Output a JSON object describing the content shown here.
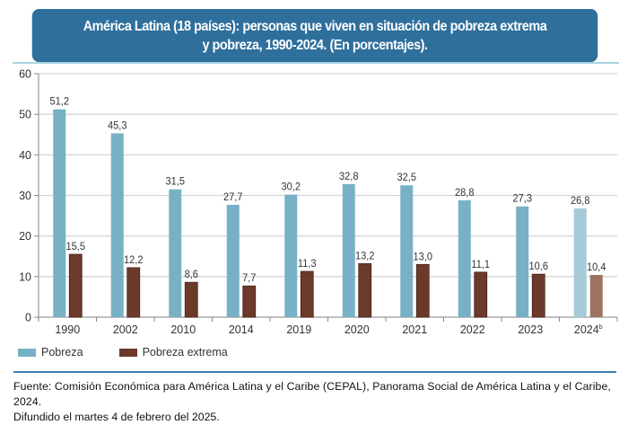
{
  "title": {
    "line1": "América Latina (18 países): personas que viven en situación de pobreza extrema",
    "line2": "y pobreza, 1990-2024. (En porcentajes)."
  },
  "chart_data": {
    "type": "bar",
    "title": "América Latina (18 países): personas que viven en situación de pobreza extrema y pobreza, 1990-2024. (En porcentajes).",
    "xlabel": "",
    "ylabel": "",
    "ylim": [
      0,
      60
    ],
    "yticks": [
      0,
      10,
      20,
      30,
      40,
      50,
      60
    ],
    "grid": true,
    "legend_position": "bottom-left",
    "categories": [
      "1990",
      "2002",
      "2010",
      "2014",
      "2019",
      "2020",
      "2021",
      "2022",
      "2023",
      "2024"
    ],
    "category_superscripts": {
      "2024": "b"
    },
    "projected_categories": [
      "2024"
    ],
    "series": [
      {
        "name": "Pobreza",
        "color": "#78b1c5",
        "projected_color": "#a6cbd6",
        "values": [
          51.2,
          45.3,
          31.5,
          27.7,
          30.2,
          32.8,
          32.5,
          28.8,
          27.3,
          26.8
        ],
        "labels": [
          "51,2",
          "45,3",
          "31,5",
          "27,7",
          "30,2",
          "32,8",
          "32,5",
          "28,8",
          "27,3",
          "26,8"
        ]
      },
      {
        "name": "Pobreza extrema",
        "color": "#6b3a2a",
        "projected_color": "#9b7360",
        "values": [
          15.5,
          12.2,
          8.6,
          7.7,
          11.3,
          13.2,
          13.0,
          11.1,
          10.6,
          10.4
        ],
        "labels": [
          "15,5",
          "12,2",
          "8,6",
          "7,7",
          "11,3",
          "13,2",
          "13,0",
          "11,1",
          "10,6",
          "10,4"
        ]
      }
    ]
  },
  "legend": [
    {
      "label": "Pobreza",
      "color": "#78b1c5"
    },
    {
      "label": "Pobreza extrema",
      "color": "#6b3a2a"
    }
  ],
  "source": {
    "line1": "Fuente: Comisión Económica para América Latina y el Caribe (CEPAL), Panorama Social de América Latina y el Caribe, 2024.",
    "line2": "Difundido el martes 4 de febrero del 2025."
  }
}
